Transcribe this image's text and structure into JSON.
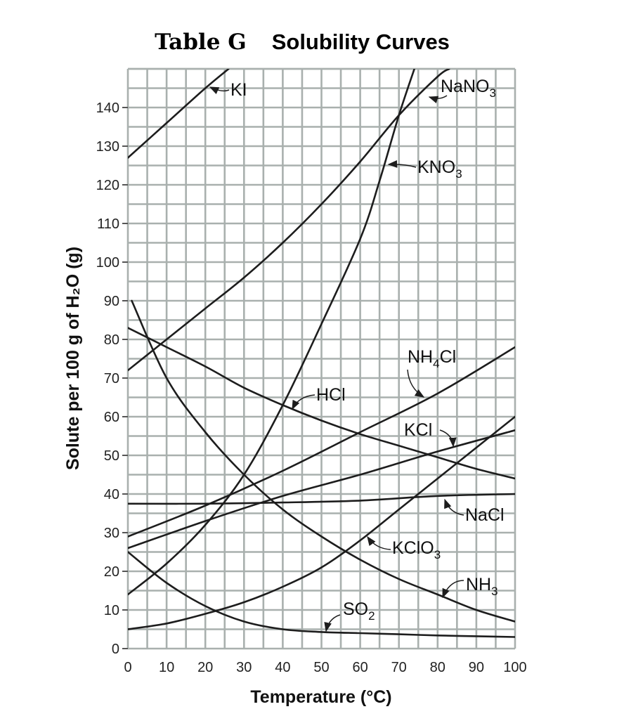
{
  "chart_data": {
    "type": "line",
    "title": "Table G",
    "subtitle": "Solubility Curves",
    "xlabel": "Temperature (°C)",
    "ylabel": "Solute per 100 g of H₂O (g)",
    "xlim": [
      0,
      100
    ],
    "ylim": [
      0,
      150
    ],
    "grid": true,
    "x_ticks": [
      0,
      10,
      20,
      30,
      40,
      50,
      60,
      70,
      80,
      90,
      100
    ],
    "y_ticks": [
      0,
      10,
      20,
      30,
      40,
      50,
      60,
      70,
      80,
      90,
      100,
      110,
      120,
      130,
      140
    ],
    "series": [
      {
        "name": "KI",
        "label_main": "KI",
        "label_sub": "",
        "label_tail": "",
        "x": [
          0,
          10,
          20,
          26
        ],
        "y": [
          127,
          136,
          145,
          150
        ]
      },
      {
        "name": "NaNO3",
        "label_main": "NaNO",
        "label_sub": "3",
        "label_tail": "",
        "x": [
          0,
          10,
          20,
          30,
          40,
          50,
          60,
          70,
          80,
          83
        ],
        "y": [
          72,
          80,
          88,
          96,
          105,
          115,
          126,
          138,
          148,
          150
        ]
      },
      {
        "name": "KNO3",
        "label_main": "KNO",
        "label_sub": "3",
        "label_tail": "",
        "x": [
          0,
          10,
          20,
          30,
          40,
          50,
          60,
          65,
          70,
          74
        ],
        "y": [
          14,
          22,
          32,
          45,
          63,
          84,
          106,
          121,
          138,
          150
        ]
      },
      {
        "name": "NH4Cl",
        "label_main": "NH",
        "label_sub": "4",
        "label_tail": "Cl",
        "x": [
          0,
          20,
          40,
          60,
          80,
          100
        ],
        "y": [
          29,
          37,
          46,
          56,
          66,
          78
        ]
      },
      {
        "name": "HCl",
        "label_main": "HCl",
        "label_sub": "",
        "label_tail": "",
        "x": [
          0,
          10,
          20,
          30,
          40,
          50,
          60,
          70,
          80,
          90,
          100
        ],
        "y": [
          83,
          78,
          73,
          67.5,
          63,
          59,
          55.5,
          52.5,
          49.5,
          46.5,
          44
        ]
      },
      {
        "name": "KCl",
        "label_main": "KCl",
        "label_sub": "",
        "label_tail": "",
        "x": [
          0,
          20,
          40,
          60,
          80,
          100
        ],
        "y": [
          26,
          33,
          39.5,
          45,
          51,
          56.5
        ]
      },
      {
        "name": "NaCl",
        "label_main": "NaCl",
        "label_sub": "",
        "label_tail": "",
        "x": [
          0,
          20,
          40,
          60,
          80,
          100
        ],
        "y": [
          37.5,
          37.5,
          37.8,
          38.3,
          39.5,
          40
        ]
      },
      {
        "name": "KClO3",
        "label_main": "KClO",
        "label_sub": "3",
        "label_tail": "",
        "x": [
          0,
          10,
          20,
          30,
          40,
          50,
          60,
          70,
          80,
          90,
          100
        ],
        "y": [
          5,
          6.5,
          9,
          12,
          16,
          21,
          28,
          36,
          44,
          52,
          60
        ]
      },
      {
        "name": "NH3",
        "label_main": "NH",
        "label_sub": "3",
        "label_tail": "",
        "x": [
          1,
          10,
          20,
          30,
          40,
          50,
          60,
          70,
          80,
          90,
          100
        ],
        "y": [
          90,
          70,
          56,
          45,
          36,
          29,
          23,
          18,
          14,
          10,
          7
        ]
      },
      {
        "name": "SO2",
        "label_main": "SO",
        "label_sub": "2",
        "label_tail": "",
        "x": [
          0,
          10,
          20,
          30,
          40,
          50,
          60,
          70,
          80,
          90,
          100
        ],
        "y": [
          25,
          17,
          11,
          7,
          5,
          4.3,
          4,
          3.7,
          3.4,
          3.2,
          3
        ]
      }
    ]
  }
}
